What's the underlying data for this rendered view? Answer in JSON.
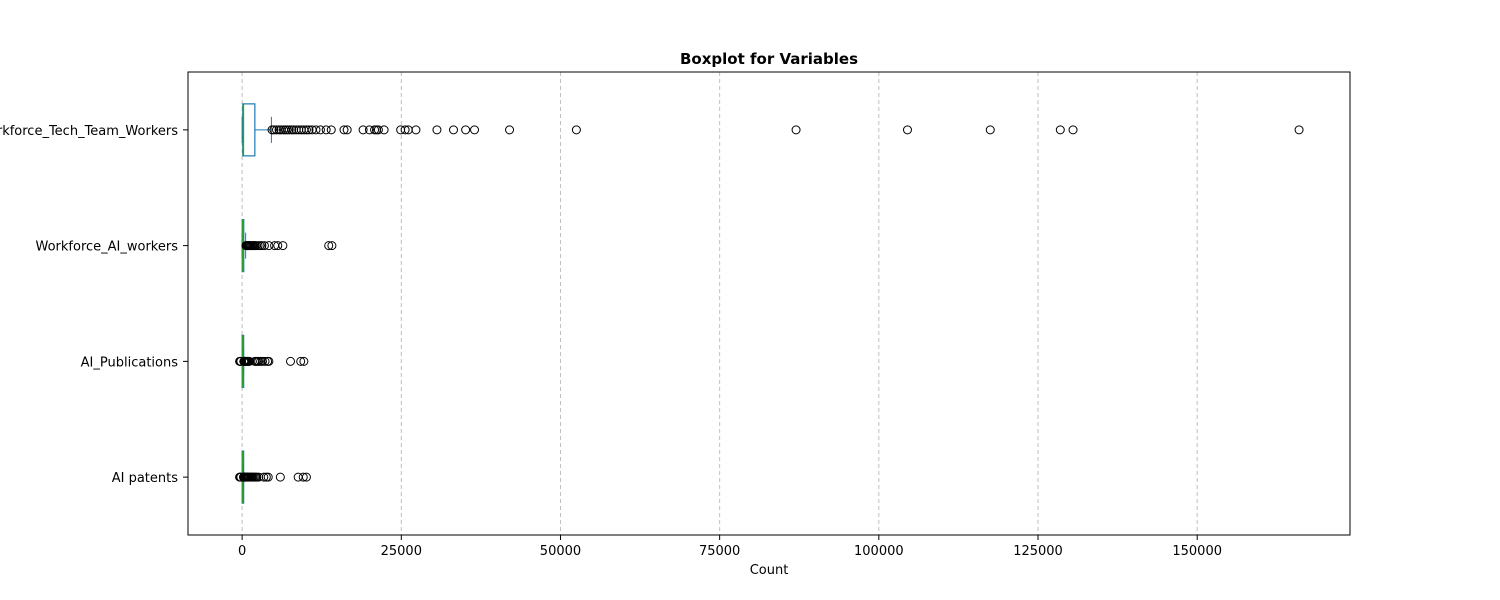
{
  "chart_data": {
    "type": "boxplot",
    "orientation": "horizontal",
    "title": "Boxplot for Variables",
    "xlabel": "Count",
    "ylabel": "",
    "xlim": [
      -8500,
      174000
    ],
    "xticks": [
      0,
      25000,
      50000,
      75000,
      100000,
      125000,
      150000
    ],
    "xtick_labels": [
      "0",
      "25000",
      "50000",
      "75000",
      "100000",
      "125000",
      "150000"
    ],
    "grid": {
      "x": true,
      "y": false,
      "style": "dashed"
    },
    "colors": {
      "box": "#1f77b4",
      "median": "#2ca02c",
      "flier": "#000000",
      "grid": "#b0b0b0"
    },
    "series": [
      {
        "name": "Workforce_Tech_Team_Workers",
        "label": "Workforce_Tech_Team_Workers",
        "whisker_low": 0,
        "q1": 100,
        "median": 200,
        "q3": 2000,
        "whisker_high": 4600,
        "outliers": [
          4700,
          5000,
          5400,
          5800,
          6100,
          6500,
          6800,
          7100,
          7400,
          7800,
          8100,
          8500,
          8900,
          9300,
          9700,
          10100,
          10500,
          11000,
          11600,
          12300,
          13200,
          14000,
          16000,
          16500,
          19000,
          20000,
          20800,
          21100,
          21400,
          22300,
          24900,
          25600,
          26100,
          27300,
          30600,
          33200,
          35100,
          36500,
          42000,
          52500,
          87000,
          104500,
          117500,
          128500,
          130500,
          166000
        ]
      },
      {
        "name": "Workforce_AI_workers",
        "label": "Workforce_AI_workers",
        "whisker_low": 0,
        "q1": 20,
        "median": 80,
        "q3": 250,
        "whisker_high": 550,
        "outliers": [
          600,
          700,
          800,
          900,
          1000,
          1100,
          1200,
          1350,
          1500,
          1650,
          1800,
          2000,
          2200,
          2500,
          2800,
          3100,
          3500,
          4200,
          5100,
          5600,
          6400,
          13600,
          14100
        ]
      },
      {
        "name": "AI_Publications",
        "label": "AI_Publications",
        "whisker_low": 0,
        "q1": 5,
        "median": 30,
        "q3": 100,
        "whisker_high": 230,
        "outliers": [
          -400,
          -300,
          -200,
          260,
          300,
          350,
          400,
          450,
          500,
          550,
          600,
          700,
          800,
          900,
          1000,
          1150,
          2000,
          2200,
          2400,
          2600,
          2900,
          3200,
          3600,
          4000,
          4200,
          7600,
          9200,
          9700
        ]
      },
      {
        "name": "AI patents",
        "label": "AI patents",
        "whisker_low": 0,
        "q1": 5,
        "median": 20,
        "q3": 80,
        "whisker_high": 190,
        "outliers": [
          -400,
          -300,
          -200,
          210,
          250,
          300,
          350,
          400,
          450,
          500,
          600,
          700,
          800,
          900,
          1000,
          1100,
          1250,
          1400,
          1550,
          1700,
          1900,
          2100,
          2300,
          2600,
          3400,
          3800,
          4100,
          6000,
          8800,
          9600,
          10100
        ]
      }
    ]
  }
}
